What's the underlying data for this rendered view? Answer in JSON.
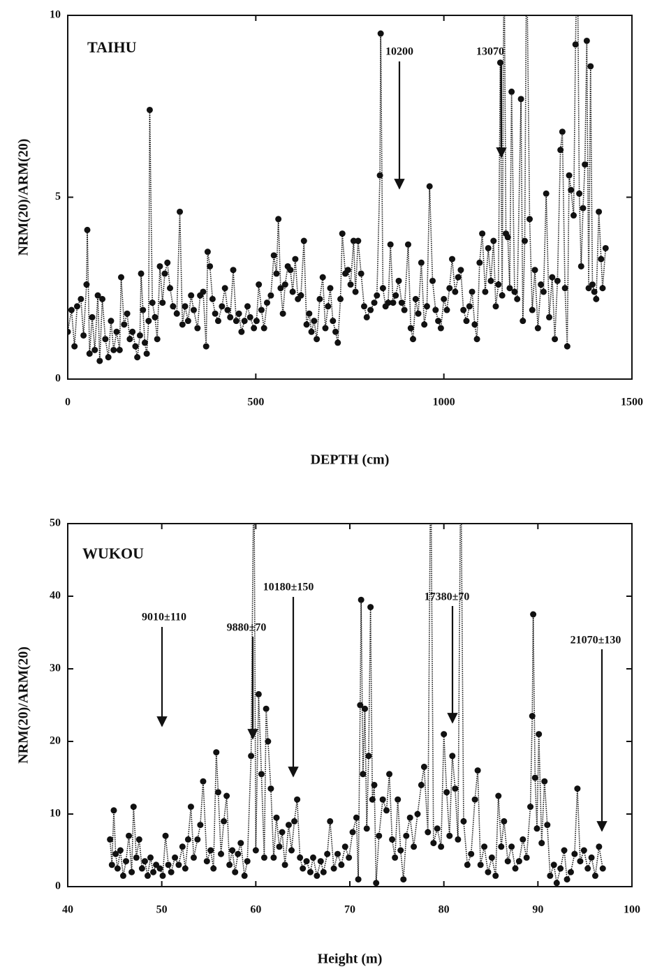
{
  "chart_data": [
    {
      "type": "line",
      "title": "TAIHU",
      "x_label": "DEPTH (cm)",
      "y_label": "NRM(20)/ARM(20)",
      "color": "#111111",
      "line_style": "dotted",
      "markers": true,
      "xlim": [
        0,
        1500
      ],
      "ylim": [
        0,
        10
      ],
      "xticks": [
        0,
        500,
        1000,
        1500
      ],
      "yticks": [
        0,
        5,
        10
      ],
      "annotations": [
        "10200",
        "13070"
      ],
      "x": [
        0,
        10,
        18,
        25,
        35,
        42,
        50,
        52,
        58,
        65,
        72,
        80,
        85,
        92,
        100,
        108,
        115,
        122,
        130,
        138,
        142,
        150,
        158,
        165,
        172,
        180,
        185,
        192,
        195,
        200,
        205,
        210,
        215,
        218,
        225,
        232,
        238,
        245,
        252,
        258,
        265,
        272,
        280,
        290,
        298,
        305,
        312,
        320,
        328,
        335,
        345,
        352,
        360,
        368,
        372,
        378,
        385,
        392,
        400,
        410,
        418,
        425,
        432,
        440,
        448,
        455,
        462,
        470,
        478,
        485,
        495,
        502,
        508,
        515,
        522,
        530,
        540,
        548,
        555,
        560,
        566,
        572,
        578,
        585,
        592,
        598,
        605,
        612,
        620,
        628,
        635,
        642,
        648,
        655,
        662,
        670,
        678,
        685,
        692,
        698,
        705,
        712,
        718,
        725,
        730,
        738,
        745,
        752,
        760,
        765,
        772,
        780,
        788,
        795,
        805,
        815,
        822,
        830,
        832,
        838,
        845,
        852,
        858,
        865,
        872,
        880,
        888,
        895,
        905,
        912,
        918,
        925,
        932,
        940,
        948,
        955,
        962,
        970,
        978,
        985,
        992,
        1000,
        1008,
        1015,
        1022,
        1030,
        1038,
        1045,
        1052,
        1060,
        1068,
        1075,
        1082,
        1088,
        1095,
        1102,
        1110,
        1118,
        1125,
        1132,
        1138,
        1145,
        1150,
        1155,
        1160,
        1165,
        1170,
        1175,
        1180,
        1188,
        1195,
        1205,
        1210,
        1215,
        1220,
        1228,
        1235,
        1242,
        1250,
        1258,
        1265,
        1272,
        1280,
        1288,
        1295,
        1302,
        1310,
        1315,
        1322,
        1328,
        1333,
        1338,
        1345,
        1350,
        1355,
        1360,
        1365,
        1370,
        1375,
        1380,
        1385,
        1390,
        1395,
        1400,
        1405,
        1412,
        1418,
        1422,
        1430
      ],
      "values": [
        1.3,
        1.9,
        0.9,
        2.0,
        2.2,
        1.2,
        2.6,
        4.1,
        0.7,
        1.7,
        0.8,
        2.3,
        0.5,
        2.2,
        1.1,
        0.6,
        1.6,
        0.8,
        1.3,
        0.8,
        2.8,
        1.5,
        1.8,
        1.1,
        1.3,
        0.9,
        0.6,
        1.2,
        2.9,
        1.9,
        1.0,
        0.7,
        1.6,
        7.4,
        2.1,
        1.7,
        1.1,
        3.1,
        2.1,
        2.9,
        3.2,
        2.5,
        2.0,
        1.8,
        4.6,
        1.5,
        2.0,
        1.6,
        2.3,
        1.9,
        1.4,
        2.3,
        2.4,
        0.9,
        3.5,
        3.1,
        2.2,
        1.8,
        1.6,
        2.0,
        2.5,
        1.9,
        1.7,
        3.0,
        1.6,
        1.8,
        1.3,
        1.6,
        2.0,
        1.7,
        1.4,
        1.6,
        2.6,
        1.9,
        1.4,
        2.1,
        2.3,
        3.4,
        2.9,
        4.4,
        2.5,
        1.8,
        2.6,
        3.1,
        3.0,
        2.4,
        3.3,
        2.2,
        2.3,
        3.8,
        1.5,
        1.8,
        1.3,
        1.6,
        1.1,
        2.2,
        2.8,
        1.4,
        2.0,
        2.5,
        1.6,
        1.3,
        1.0,
        2.2,
        4.0,
        2.9,
        3.0,
        2.6,
        3.8,
        2.4,
        3.8,
        2.9,
        2.0,
        1.7,
        1.9,
        2.1,
        2.3,
        5.6,
        9.5,
        2.5,
        2.0,
        2.1,
        3.7,
        2.1,
        2.3,
        2.7,
        2.1,
        1.9,
        3.7,
        1.4,
        1.1,
        2.2,
        1.8,
        3.2,
        1.5,
        2.0,
        5.3,
        2.7,
        1.9,
        1.6,
        1.4,
        2.2,
        1.9,
        2.5,
        3.3,
        2.4,
        2.8,
        3.0,
        1.9,
        1.6,
        2.0,
        2.4,
        1.5,
        1.1,
        3.2,
        4.0,
        2.4,
        3.6,
        2.7,
        3.8,
        2.0,
        2.6,
        8.7,
        2.3,
        12,
        4.0,
        3.9,
        2.5,
        7.9,
        2.4,
        2.2,
        7.7,
        1.6,
        3.8,
        12,
        4.4,
        1.9,
        3.0,
        1.4,
        2.6,
        2.4,
        5.1,
        1.7,
        2.8,
        1.1,
        2.7,
        6.3,
        6.8,
        2.5,
        0.9,
        5.6,
        5.2,
        4.5,
        9.2,
        12,
        5.1,
        3.1,
        4.7,
        5.9,
        9.3,
        2.5,
        8.6,
        2.6,
        2.4,
        2.2,
        4.6,
        3.3,
        2.5,
        3.6
      ]
    },
    {
      "type": "line",
      "title": "WUKOU",
      "x_label": "Height (m)",
      "y_label": "NRM(20)/ARM(20)",
      "color": "#111111",
      "line_style": "dotted",
      "markers": true,
      "xlim": [
        40,
        100
      ],
      "ylim": [
        0,
        50
      ],
      "xticks": [
        40,
        50,
        60,
        70,
        80,
        90,
        100
      ],
      "yticks": [
        0,
        10,
        20,
        30,
        40,
        50
      ],
      "annotations": [
        "9010±110",
        "9880±70",
        "10180±150",
        "17380±70",
        "21070±130"
      ],
      "x": [
        44.5,
        44.7,
        44.9,
        45.1,
        45.3,
        45.6,
        45.9,
        46.2,
        46.5,
        46.8,
        47.0,
        47.3,
        47.6,
        47.9,
        48.2,
        48.5,
        48.8,
        49.1,
        49.4,
        49.8,
        50.1,
        50.4,
        50.7,
        51.0,
        51.4,
        51.8,
        52.2,
        52.5,
        52.8,
        53.1,
        53.4,
        53.8,
        54.1,
        54.4,
        54.8,
        55.2,
        55.5,
        55.8,
        56.0,
        56.3,
        56.6,
        56.9,
        57.2,
        57.5,
        57.8,
        58.1,
        58.4,
        58.8,
        59.1,
        59.5,
        59.8,
        60.0,
        60.3,
        60.6,
        60.9,
        61.1,
        61.3,
        61.6,
        61.9,
        62.2,
        62.5,
        62.8,
        63.1,
        63.5,
        63.8,
        64.1,
        64.4,
        64.7,
        65.0,
        65.4,
        65.8,
        66.1,
        66.5,
        66.9,
        67.2,
        67.6,
        67.9,
        68.3,
        68.7,
        69.1,
        69.5,
        69.9,
        70.3,
        70.7,
        70.9,
        71.1,
        71.2,
        71.4,
        71.6,
        71.8,
        72.0,
        72.2,
        72.4,
        72.6,
        72.8,
        73.1,
        73.5,
        73.9,
        74.2,
        74.5,
        74.8,
        75.1,
        75.4,
        75.7,
        76.0,
        76.4,
        76.8,
        77.2,
        77.6,
        77.9,
        78.3,
        78.6,
        78.9,
        79.3,
        79.7,
        80.0,
        80.3,
        80.6,
        80.9,
        81.2,
        81.5,
        81.8,
        82.1,
        82.5,
        82.9,
        83.3,
        83.6,
        83.9,
        84.3,
        84.7,
        85.1,
        85.5,
        85.8,
        86.1,
        86.4,
        86.8,
        87.2,
        87.6,
        88.0,
        88.4,
        88.8,
        89.2,
        89.4,
        89.5,
        89.7,
        89.9,
        90.1,
        90.4,
        90.7,
        91.0,
        91.3,
        91.7,
        92.0,
        92.4,
        92.8,
        93.1,
        93.5,
        93.9,
        94.2,
        94.5,
        94.9,
        95.3,
        95.7,
        96.1,
        96.5,
        96.9
      ],
      "values": [
        6.5,
        3.0,
        10.5,
        4.5,
        2.5,
        5.0,
        1.5,
        3.5,
        7.0,
        2.0,
        11.0,
        4.0,
        6.5,
        2.5,
        3.5,
        1.5,
        4.0,
        2.0,
        3.0,
        2.5,
        1.5,
        7.0,
        3.0,
        2.0,
        4.0,
        3.0,
        5.5,
        2.5,
        6.5,
        11.0,
        4.0,
        6.5,
        8.5,
        14.5,
        3.5,
        5.0,
        2.5,
        18.5,
        13.0,
        4.5,
        9.0,
        12.5,
        3.0,
        5.0,
        2.0,
        4.5,
        6.0,
        1.5,
        3.5,
        18.0,
        60,
        5.0,
        26.5,
        15.5,
        4.0,
        24.5,
        20.0,
        13.5,
        4.0,
        9.5,
        5.5,
        7.5,
        3.0,
        8.5,
        5.0,
        9.0,
        12.0,
        4.0,
        2.5,
        3.5,
        2.0,
        4.0,
        1.5,
        3.5,
        2.0,
        4.5,
        9.0,
        2.5,
        4.5,
        3.0,
        5.5,
        4.0,
        7.5,
        9.5,
        1.0,
        25,
        39.5,
        15.5,
        24.5,
        8.0,
        18.0,
        38.5,
        12.0,
        14.0,
        0.5,
        7.0,
        12.0,
        10.5,
        15.5,
        6.5,
        4.0,
        12.0,
        5.0,
        1.0,
        7.0,
        9.5,
        5.5,
        10.0,
        14.0,
        16.5,
        7.5,
        60,
        6.0,
        8.0,
        5.5,
        21.0,
        13.0,
        7.0,
        18.0,
        13.5,
        6.5,
        60,
        9.0,
        3.0,
        4.5,
        12.0,
        16.0,
        3.0,
        5.5,
        2.0,
        4.0,
        1.5,
        12.5,
        5.5,
        9.0,
        3.5,
        5.5,
        2.5,
        3.5,
        6.5,
        4.0,
        11.0,
        23.5,
        37.5,
        15.0,
        8.0,
        21.0,
        6.0,
        14.5,
        8.5,
        1.5,
        3.0,
        0.5,
        2.5,
        5.0,
        1.0,
        2.0,
        4.5,
        13.5,
        3.5,
        5.0,
        2.5,
        4.0,
        1.5,
        5.5,
        2.5
      ]
    }
  ]
}
